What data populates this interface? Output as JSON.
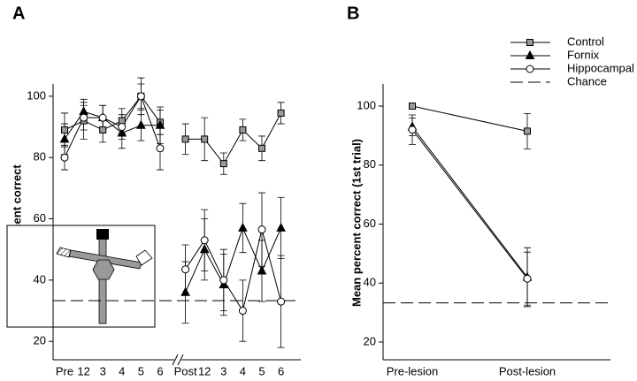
{
  "chart_data": [
    {
      "type": "line",
      "panel_label": "A",
      "y_label": "Mean percent correct",
      "categories": [
        "Pre",
        "12",
        "3",
        "4",
        "5",
        "6",
        "Post",
        "12",
        "3",
        "4",
        "5",
        "6"
      ],
      "x_break_after": 6,
      "ylim": [
        14,
        104
      ],
      "yticks": [
        20,
        40,
        60,
        80,
        100
      ],
      "reference_line": {
        "value": 33.3
      },
      "series": [
        {
          "marker": "square",
          "color": "#9a9a9a",
          "values": [
            89,
            92,
            89,
            92,
            100,
            91.5,
            86,
            86,
            78,
            89,
            83,
            94.5
          ],
          "errors": [
            5.5,
            6,
            4,
            4,
            6,
            4,
            5,
            7,
            3.5,
            3.5,
            4,
            3.5
          ]
        },
        {
          "marker": "triangle",
          "color": "#000000",
          "values": [
            86,
            95,
            93,
            88,
            90.5,
            90.5,
            36,
            50,
            38.5,
            57,
            43,
            57
          ],
          "errors": [
            5,
            4,
            4,
            5,
            5,
            6,
            10,
            10,
            10,
            8,
            10,
            10
          ]
        },
        {
          "marker": "circle",
          "color": "#ffffff",
          "values": [
            80,
            93,
            93,
            90,
            100,
            83,
            43.5,
            53,
            40,
            30,
            56.5,
            33
          ],
          "errors": [
            4,
            4,
            4,
            4,
            4,
            7,
            8,
            10,
            10,
            10,
            12,
            15
          ]
        }
      ]
    },
    {
      "type": "line",
      "panel_label": "B",
      "y_label": "Mean percent correct (1st trial)",
      "categories": [
        "Pre-lesion",
        "Post-lesion"
      ],
      "ylim": [
        14,
        107.5
      ],
      "yticks": [
        20,
        40,
        60,
        80,
        100
      ],
      "legend": "upper right",
      "reference_line": {
        "name": "Chance",
        "value": 33.3
      },
      "series": [
        {
          "name": "Control",
          "marker": "square",
          "color": "#9a9a9a",
          "values": [
            100,
            91.5
          ],
          "errors": [
            1,
            6
          ]
        },
        {
          "name": "Fornix",
          "marker": "triangle",
          "color": "#000000",
          "values": [
            93,
            42
          ],
          "errors": [
            3,
            10
          ]
        },
        {
          "name": "Hippocampal",
          "marker": "circle",
          "color": "#ffffff",
          "values": [
            92,
            41.5
          ],
          "errors": [
            5,
            9
          ]
        }
      ]
    }
  ]
}
